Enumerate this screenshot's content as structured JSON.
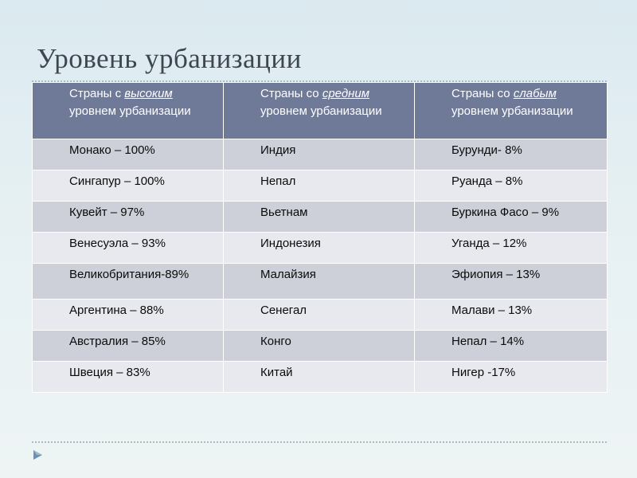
{
  "slide": {
    "title": "Уровень урбанизации"
  },
  "table": {
    "headers": [
      {
        "before": "Страны с ",
        "emph": "высоким",
        "after": " уровнем урбанизации"
      },
      {
        "before": "Страны со ",
        "emph": "средним",
        "after": " уровнем урбанизации"
      },
      {
        "before": "Страны со ",
        "emph": "слабым",
        "after": " уровнем урбанизации"
      }
    ],
    "rows": [
      [
        "Монако – 100%",
        "Индия",
        "Бурунди- 8%"
      ],
      [
        "Сингапур – 100%",
        "Непал",
        "Руанда – 8%"
      ],
      [
        "Кувейт – 97%",
        "Вьетнам",
        "Буркина Фасо – 9%"
      ],
      [
        "Венесуэла – 93%",
        "Индонезия",
        "Уганда – 12%"
      ],
      [
        "Великобритания-89%",
        "Малайзия",
        "Эфиопия – 13%"
      ],
      [
        "Аргентина – 88%",
        "Сенегал",
        "Малави – 13%"
      ],
      [
        "Австралия – 85%",
        "Конго",
        "Непал – 14%"
      ],
      [
        "Швеция – 83%",
        "Китай",
        "Нигер -17%"
      ]
    ]
  },
  "icons": {
    "nav": "triangle-arrow-icon"
  },
  "colors": {
    "header_bg": "#6f7a99",
    "row_odd": "#cdd0d8",
    "row_even": "#e7e9ee",
    "title": "#3f4652"
  }
}
